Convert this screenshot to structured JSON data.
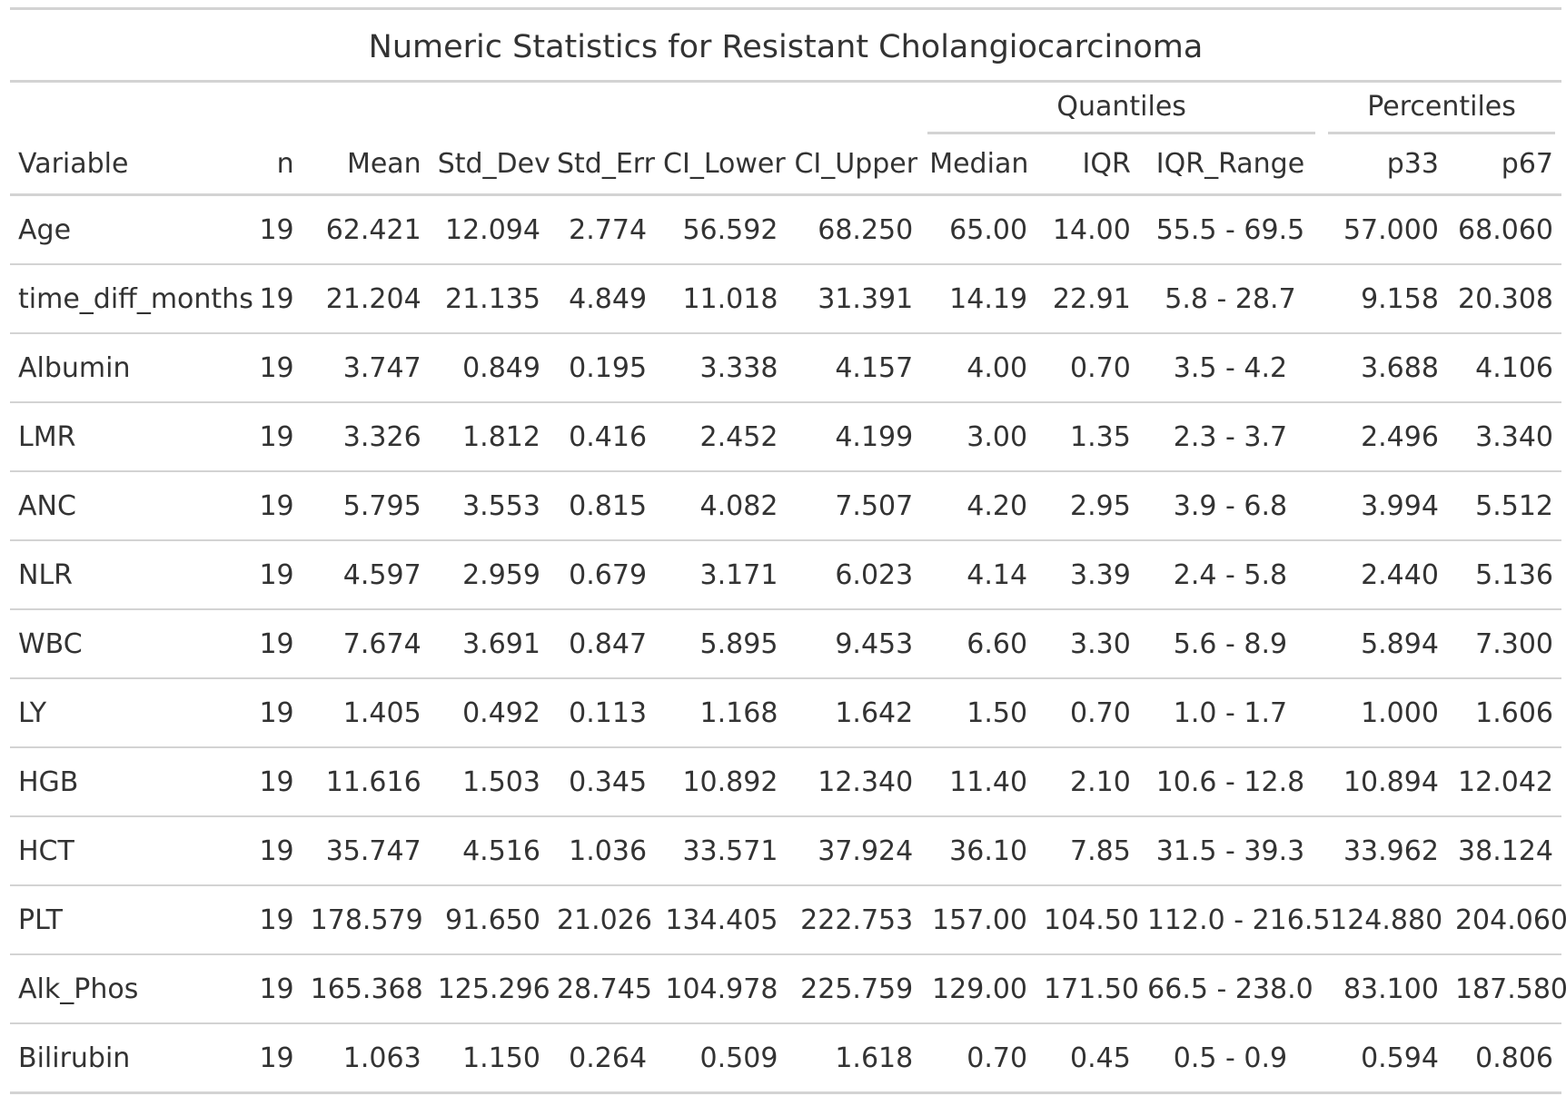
{
  "title": "Numeric Statistics for Resistant Cholangiocarcinoma",
  "spanners": {
    "quantiles": "Quantiles",
    "percentiles": "Percentiles"
  },
  "columns": [
    "Variable",
    "n",
    "Mean",
    "Std_Dev",
    "Std_Err",
    "CI_Lower",
    "CI_Upper",
    "Median",
    "IQR",
    "IQR_Range",
    "p33",
    "p67"
  ],
  "rows": [
    [
      "Age",
      "19",
      "62.421",
      "12.094",
      "2.774",
      "56.592",
      "68.250",
      "65.00",
      "14.00",
      "55.5 - 69.5",
      "57.000",
      "68.060"
    ],
    [
      "time_diff_months",
      "19",
      "21.204",
      "21.135",
      "4.849",
      "11.018",
      "31.391",
      "14.19",
      "22.91",
      "5.8 - 28.7",
      "9.158",
      "20.308"
    ],
    [
      "Albumin",
      "19",
      "3.747",
      "0.849",
      "0.195",
      "3.338",
      "4.157",
      "4.00",
      "0.70",
      "3.5 - 4.2",
      "3.688",
      "4.106"
    ],
    [
      "LMR",
      "19",
      "3.326",
      "1.812",
      "0.416",
      "2.452",
      "4.199",
      "3.00",
      "1.35",
      "2.3 - 3.7",
      "2.496",
      "3.340"
    ],
    [
      "ANC",
      "19",
      "5.795",
      "3.553",
      "0.815",
      "4.082",
      "7.507",
      "4.20",
      "2.95",
      "3.9 - 6.8",
      "3.994",
      "5.512"
    ],
    [
      "NLR",
      "19",
      "4.597",
      "2.959",
      "0.679",
      "3.171",
      "6.023",
      "4.14",
      "3.39",
      "2.4 - 5.8",
      "2.440",
      "5.136"
    ],
    [
      "WBC",
      "19",
      "7.674",
      "3.691",
      "0.847",
      "5.895",
      "9.453",
      "6.60",
      "3.30",
      "5.6 - 8.9",
      "5.894",
      "7.300"
    ],
    [
      "LY",
      "19",
      "1.405",
      "0.492",
      "0.113",
      "1.168",
      "1.642",
      "1.50",
      "0.70",
      "1.0 - 1.7",
      "1.000",
      "1.606"
    ],
    [
      "HGB",
      "19",
      "11.616",
      "1.503",
      "0.345",
      "10.892",
      "12.340",
      "11.40",
      "2.10",
      "10.6 - 12.8",
      "10.894",
      "12.042"
    ],
    [
      "HCT",
      "19",
      "35.747",
      "4.516",
      "1.036",
      "33.571",
      "37.924",
      "36.10",
      "7.85",
      "31.5 - 39.3",
      "33.962",
      "38.124"
    ],
    [
      "PLT",
      "19",
      "178.579",
      "91.650",
      "21.026",
      "134.405",
      "222.753",
      "157.00",
      "104.50",
      "112.0 - 216.5",
      "124.880",
      "204.060"
    ],
    [
      "Alk_Phos",
      "19",
      "165.368",
      "125.296",
      "28.745",
      "104.978",
      "225.759",
      "129.00",
      "171.50",
      "66.5 - 238.0",
      "83.100",
      "187.580"
    ],
    [
      "Bilirubin",
      "19",
      "1.063",
      "1.150",
      "0.264",
      "0.509",
      "1.618",
      "0.70",
      "0.45",
      "0.5 - 0.9",
      "0.594",
      "0.806"
    ]
  ]
}
